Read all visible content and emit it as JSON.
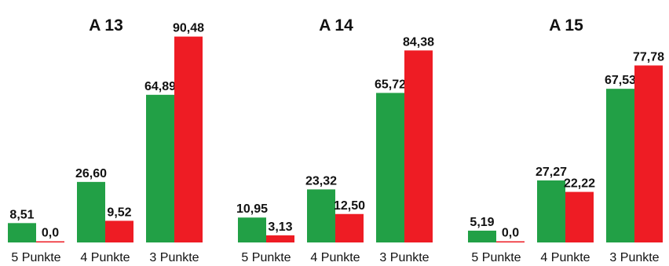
{
  "chart_data": [
    {
      "type": "bar",
      "title": "A 13",
      "categories": [
        "5 Punkte",
        "4 Punkte",
        "3 Punkte"
      ],
      "series": [
        {
          "color": "#22a046",
          "values": [
            8.51,
            26.6,
            64.89
          ],
          "labels": [
            "8,51",
            "26,60",
            "64,89"
          ]
        },
        {
          "color": "#ee1c24",
          "values": [
            0.0,
            9.52,
            90.48
          ],
          "labels": [
            "0,0",
            "9,52",
            "90,48"
          ]
        }
      ],
      "ylim": [
        0,
        100
      ],
      "grid": false
    },
    {
      "type": "bar",
      "title": "A 14",
      "categories": [
        "5 Punkte",
        "4 Punkte",
        "3 Punkte"
      ],
      "series": [
        {
          "color": "#22a046",
          "values": [
            10.95,
            23.32,
            65.72
          ],
          "labels": [
            "10,95",
            "23,32",
            "65,72"
          ]
        },
        {
          "color": "#ee1c24",
          "values": [
            3.13,
            12.5,
            84.38
          ],
          "labels": [
            "3,13",
            "12,50",
            "84,38"
          ]
        }
      ],
      "ylim": [
        0,
        100
      ],
      "grid": false
    },
    {
      "type": "bar",
      "title": "A 15",
      "categories": [
        "5 Punkte",
        "4 Punkte",
        "3 Punkte"
      ],
      "series": [
        {
          "color": "#22a046",
          "values": [
            5.19,
            27.27,
            67.53
          ],
          "labels": [
            "5,19",
            "27,27",
            "67,53"
          ]
        },
        {
          "color": "#ee1c24",
          "values": [
            0.0,
            22.22,
            77.78
          ],
          "labels": [
            "0,0",
            "22,22",
            "77,78"
          ]
        }
      ],
      "ylim": [
        0,
        100
      ],
      "grid": false
    }
  ]
}
